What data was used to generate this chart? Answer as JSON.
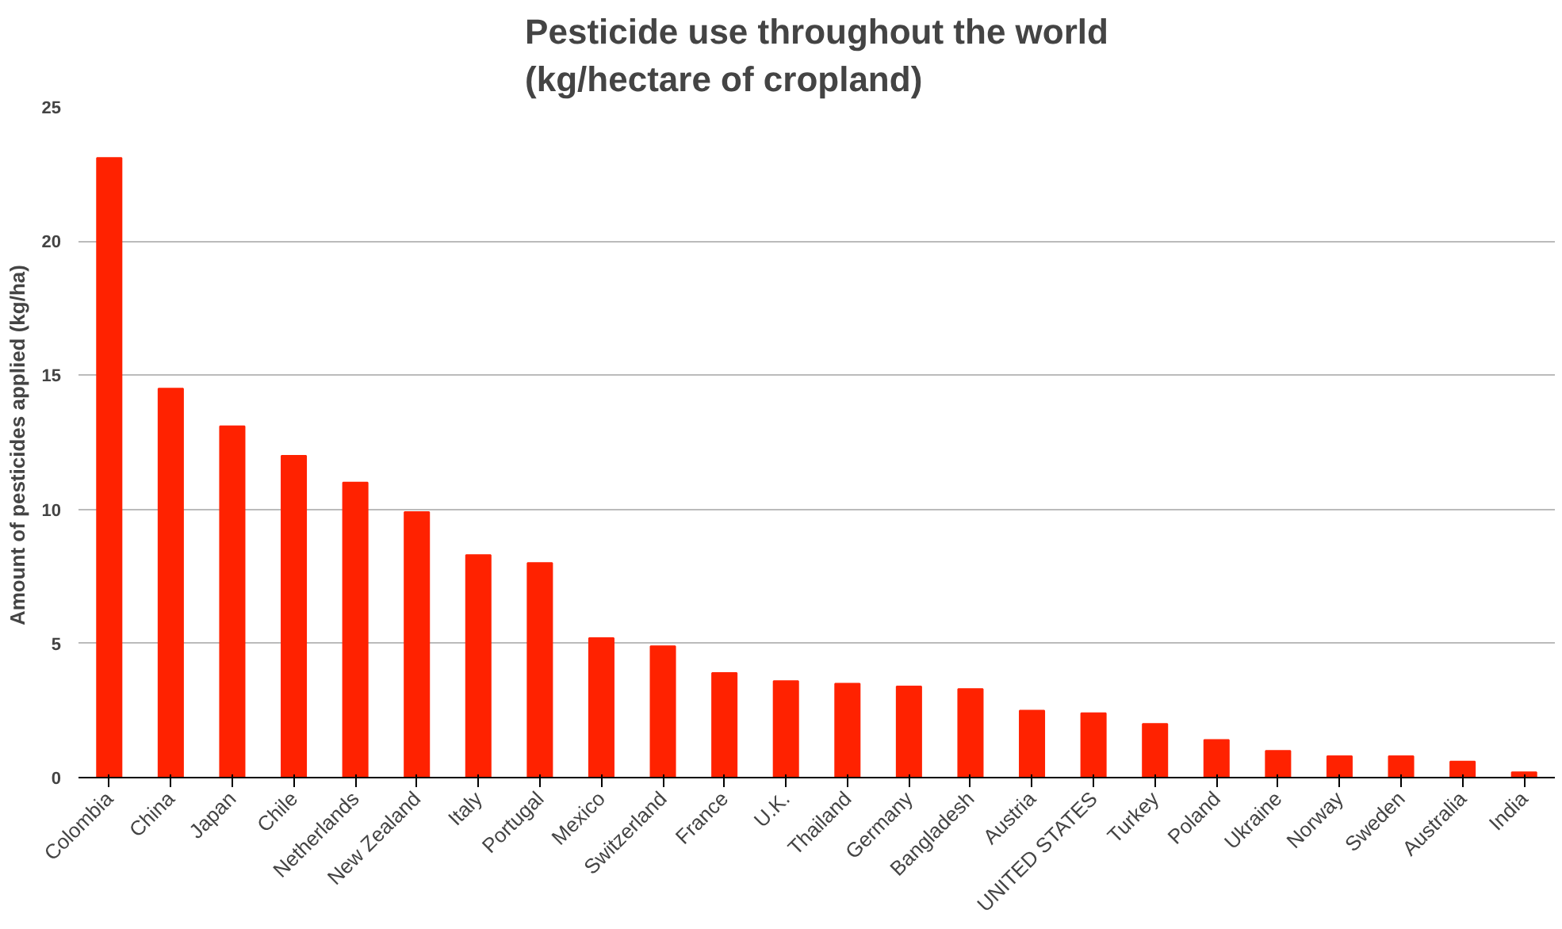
{
  "chart_data": {
    "type": "bar",
    "title": "Pesticide use throughout the world\n(kg/hectare of cropland)",
    "ylabel": "Amount of pesticides applied  (kg/ha)",
    "categories": [
      "Colombia",
      "China",
      "Japan",
      "Chile",
      "Netherlands",
      "New Zealand",
      "Italy",
      "Portugal",
      "Mexico",
      "Switzerland",
      "France",
      "U.K.",
      "Thailand",
      "Germany",
      "Bangladesh",
      "Austria",
      "UNITED STATES",
      "Turkey",
      "Poland",
      "Ukraine",
      "Norway",
      "Sweden",
      "Australia",
      "India"
    ],
    "values": [
      23.1,
      14.5,
      13.1,
      12.0,
      11.0,
      9.9,
      8.3,
      8.0,
      5.2,
      4.9,
      3.9,
      3.6,
      3.5,
      3.4,
      3.3,
      2.5,
      2.4,
      2.0,
      1.4,
      1.0,
      0.8,
      0.8,
      0.6,
      0.2
    ],
    "color": "#ff2200",
    "ylim": [
      0,
      25
    ],
    "yticks": [
      0,
      5,
      10,
      15,
      20,
      25
    ],
    "grid": "y"
  }
}
